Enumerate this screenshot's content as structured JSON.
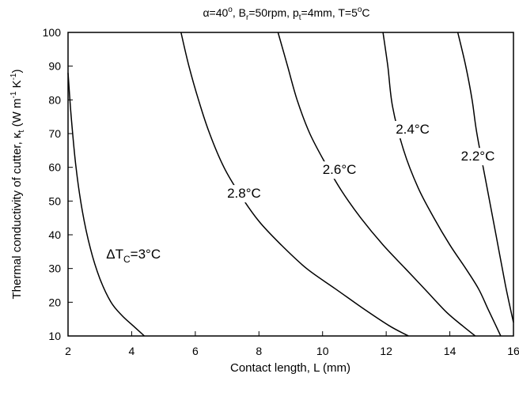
{
  "chart_data": {
    "type": "line",
    "title": {
      "alpha": "α=40",
      "deg": "o",
      "b_main": ", B",
      "b_sub": "r",
      "b_rest": "=50rpm, p",
      "p_sub": "t",
      "p_rest": "=4mm, T=5",
      "t_deg": "o",
      "t_unit": "C"
    },
    "xlabel": "Contact length, L (mm)",
    "ylabel": {
      "main": "Thermal conductivity of cutter, κ",
      "sub": "t",
      "unit_open": " (W m",
      "sup1": "-1",
      "unit_mid": " K",
      "sup2": "-1",
      "unit_close": ")"
    },
    "xlim": [
      2,
      16
    ],
    "ylim": [
      10,
      100
    ],
    "xticks": [
      2,
      4,
      6,
      8,
      10,
      12,
      14,
      16
    ],
    "yticks": [
      10,
      20,
      30,
      40,
      50,
      60,
      70,
      80,
      90,
      100
    ],
    "grid": false,
    "series": [
      {
        "name": "ΔTC=3°C",
        "label_parts": {
          "pre": "ΔT",
          "sub": "C",
          "post": "=3°C"
        },
        "label_at": [
          3.2,
          33
        ],
        "x": [
          2.0,
          2.1,
          2.25,
          2.45,
          2.7,
          3.0,
          3.35,
          3.7,
          4.05,
          4.4
        ],
        "y": [
          88,
          75,
          60,
          47,
          36,
          27,
          20,
          16,
          13,
          10
        ]
      },
      {
        "name": "2.8°C",
        "label_parts": {
          "pre": "2.8°C",
          "sub": "",
          "post": ""
        },
        "label_at": [
          7.0,
          51
        ],
        "x": [
          5.55,
          5.8,
          6.1,
          6.45,
          6.9,
          7.4,
          8.0,
          8.7,
          9.5,
          10.4,
          11.3,
          12.1,
          12.7
        ],
        "y": [
          100,
          90,
          80,
          70,
          60,
          52,
          44,
          37,
          30,
          24,
          18,
          13,
          10
        ]
      },
      {
        "name": "2.6°C",
        "label_parts": {
          "pre": "2.6°C",
          "sub": "",
          "post": ""
        },
        "label_at": [
          10.0,
          58
        ],
        "x": [
          8.6,
          8.9,
          9.2,
          9.6,
          10.1,
          10.6,
          11.2,
          11.9,
          12.6,
          13.3,
          13.9,
          14.4,
          14.8
        ],
        "y": [
          100,
          90,
          80,
          70,
          61,
          53,
          45,
          37,
          30,
          23,
          17,
          13,
          10
        ]
      },
      {
        "name": "2.4°C",
        "label_parts": {
          "pre": "2.4°C",
          "sub": "",
          "post": ""
        },
        "label_at": [
          12.3,
          70
        ],
        "x": [
          11.9,
          12.05,
          12.2,
          12.55,
          13.0,
          13.5,
          14.0,
          14.5,
          14.9,
          15.2,
          15.45,
          15.6
        ],
        "y": [
          100,
          90,
          78,
          65,
          54,
          45,
          37,
          30,
          24,
          18,
          13,
          10
        ]
      },
      {
        "name": "2.2°C",
        "label_parts": {
          "pre": "2.2°C",
          "sub": "",
          "post": ""
        },
        "label_at": [
          14.35,
          62
        ],
        "x": [
          14.25,
          14.5,
          14.7,
          14.85,
          15.15,
          15.45,
          15.75,
          16.0
        ],
        "y": [
          100,
          90,
          80,
          70,
          55,
          40,
          25,
          14
        ]
      }
    ]
  }
}
